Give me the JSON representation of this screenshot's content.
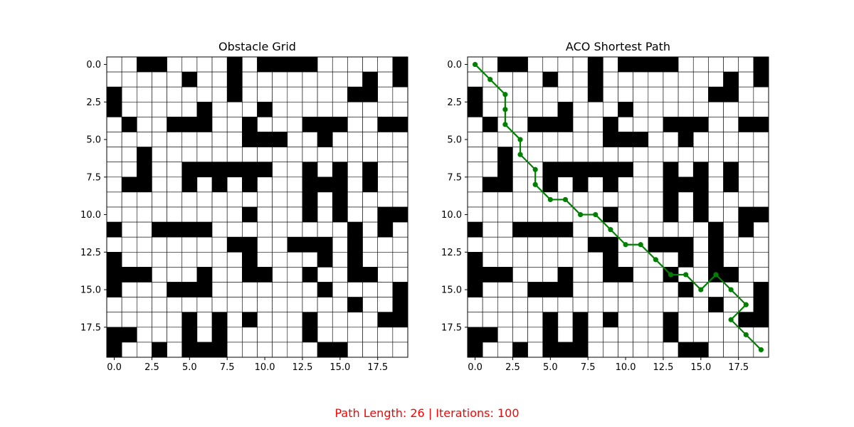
{
  "chart_data": [
    {
      "type": "heatmap",
      "title": "Obstacle Grid",
      "x_ticks": [
        "0.0",
        "2.5",
        "5.0",
        "7.5",
        "10.0",
        "12.5",
        "15.0",
        "17.5"
      ],
      "y_ticks": [
        "0.0",
        "2.5",
        "5.0",
        "7.5",
        "10.0",
        "12.5",
        "15.0",
        "17.5"
      ],
      "tick_values": [
        0,
        2.5,
        5,
        7.5,
        10,
        12.5,
        15,
        17.5
      ],
      "xlim": [
        -0.5,
        19.5
      ],
      "ylim": [
        19.5,
        -0.5
      ],
      "colormap": {
        "0": "#ffffff",
        "1": "#000000"
      },
      "grid": [
        "00110000101111000001",
        "00000100100000000101",
        "10000000100000001100",
        "10000010001000000000",
        "01001110010001110011",
        "00000000011100100000",
        "00100000000000000000",
        "00100111111001010100",
        "01100101010001110100",
        "00000000000001010000",
        "00000000010001010011",
        "10011110000000001010",
        "00000000110011101000",
        "10000000010000101000",
        "11100010011001001100",
        "10001110000000100001",
        "00000000000000001001",
        "00000101010001000011",
        "11000101000001000000",
        "10010111000000110000"
      ]
    },
    {
      "type": "heatmap",
      "title": "ACO Shortest Path",
      "x_ticks": [
        "0.0",
        "2.5",
        "5.0",
        "7.5",
        "10.0",
        "12.5",
        "15.0",
        "17.5"
      ],
      "y_ticks": [
        "0.0",
        "2.5",
        "5.0",
        "7.5",
        "10.0",
        "12.5",
        "15.0",
        "17.5"
      ],
      "tick_values": [
        0,
        2.5,
        5,
        7.5,
        10,
        12.5,
        15,
        17.5
      ],
      "xlim": [
        -0.5,
        19.5
      ],
      "ylim": [
        19.5,
        -0.5
      ],
      "grid_same_as": "Obstacle Grid",
      "path": {
        "color": "#008000",
        "points": [
          [
            0,
            0
          ],
          [
            1,
            1
          ],
          [
            2,
            2
          ],
          [
            2,
            3
          ],
          [
            2,
            4
          ],
          [
            3,
            5
          ],
          [
            3,
            6
          ],
          [
            4,
            7
          ],
          [
            4,
            8
          ],
          [
            5,
            9
          ],
          [
            6,
            9
          ],
          [
            7,
            10
          ],
          [
            8,
            10
          ],
          [
            9,
            11
          ],
          [
            10,
            12
          ],
          [
            11,
            12
          ],
          [
            12,
            13
          ],
          [
            13,
            14
          ],
          [
            14,
            14
          ],
          [
            15,
            15
          ],
          [
            16,
            14
          ],
          [
            17,
            15
          ],
          [
            18,
            16
          ],
          [
            17,
            17
          ],
          [
            18,
            18
          ],
          [
            19,
            19
          ]
        ]
      }
    }
  ],
  "footer": {
    "caption": "Path Length: 26 | Iterations: 100",
    "color": "#ff0000"
  }
}
